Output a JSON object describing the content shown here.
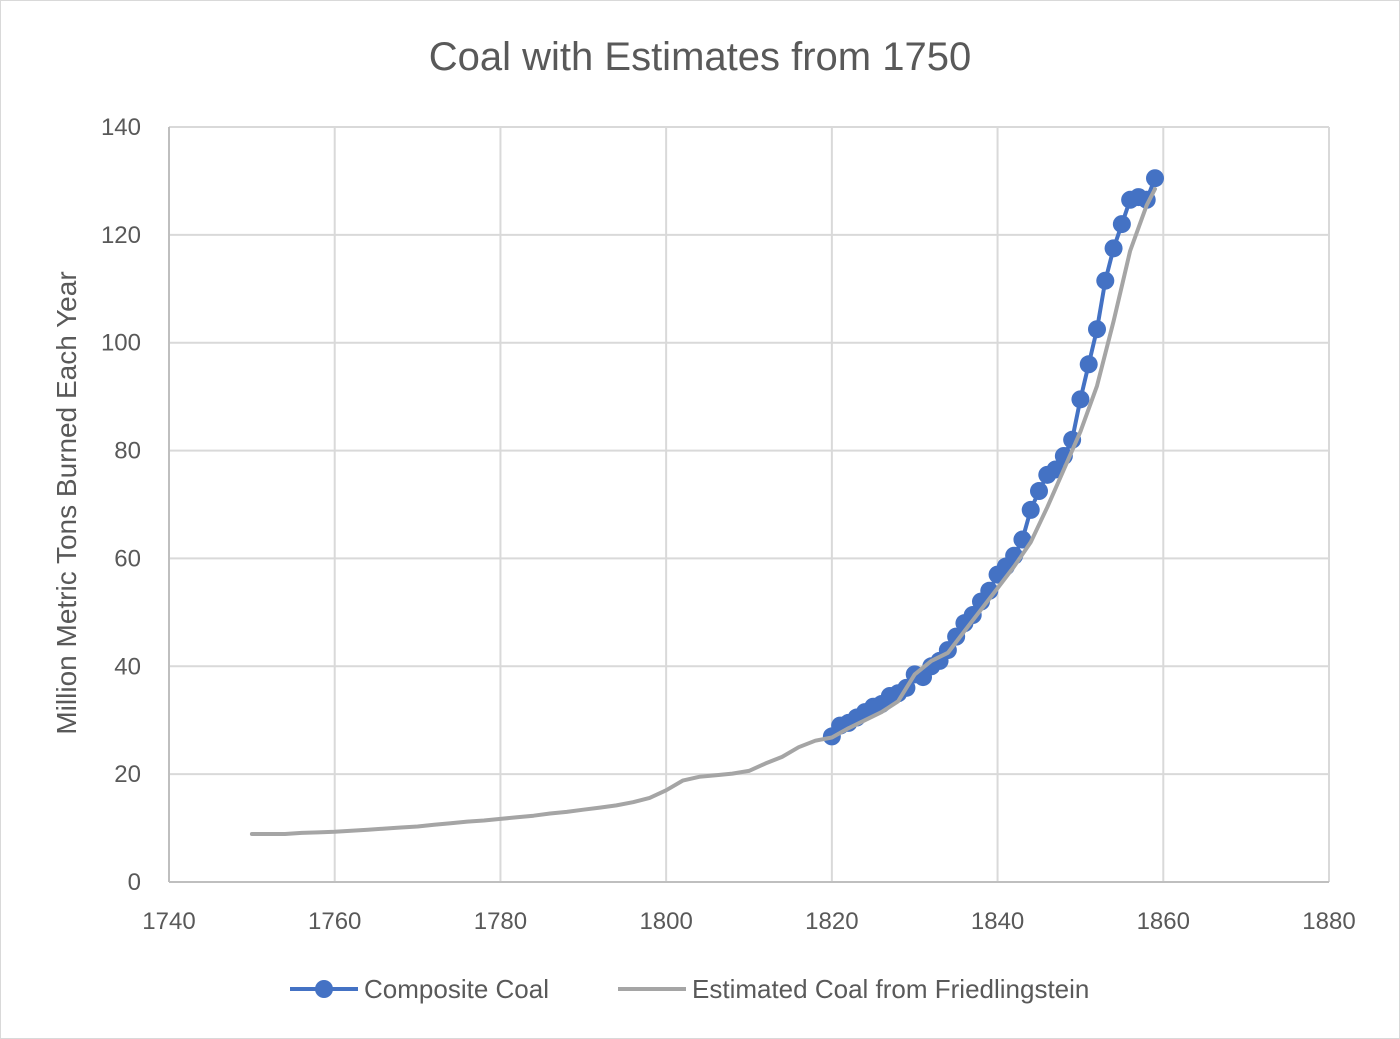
{
  "chart_data": {
    "type": "line",
    "title": "Coal with Estimates from 1750",
    "xlabel": "",
    "ylabel": "Million Metric Tons Burned Each Year",
    "xlim": [
      1740,
      1880
    ],
    "ylim": [
      0,
      140
    ],
    "x_ticks": [
      1740,
      1760,
      1780,
      1800,
      1820,
      1840,
      1860,
      1880
    ],
    "y_ticks": [
      0,
      20,
      40,
      60,
      80,
      100,
      120,
      140
    ],
    "grid": true,
    "legend_position": "bottom",
    "series": [
      {
        "name": "Composite Coal",
        "color": "#4472c4",
        "marker": "circle",
        "x": [
          1820,
          1821,
          1822,
          1823,
          1824,
          1825,
          1826,
          1827,
          1828,
          1829,
          1830,
          1831,
          1832,
          1833,
          1834,
          1835,
          1836,
          1837,
          1838,
          1839,
          1840,
          1841,
          1842,
          1843,
          1844,
          1845,
          1846,
          1847,
          1848,
          1849,
          1850,
          1851,
          1852,
          1853,
          1854,
          1855,
          1856,
          1857,
          1858,
          1859
        ],
        "y": [
          27.0,
          29.0,
          29.5,
          30.5,
          31.5,
          32.5,
          33.0,
          34.5,
          35.0,
          36.0,
          38.5,
          38.0,
          40.0,
          41.0,
          43.0,
          45.5,
          48.0,
          49.5,
          52.0,
          54.0,
          57.0,
          58.5,
          60.5,
          63.5,
          69.0,
          72.5,
          75.5,
          76.5,
          79.0,
          82.0,
          89.5,
          96.0,
          102.5,
          111.5,
          117.5,
          122.0,
          126.5,
          127.0,
          126.5,
          130.5
        ]
      },
      {
        "name": "Estimated Coal from Friedlingstein",
        "color": "#a5a5a5",
        "marker": "none",
        "x": [
          1750,
          1752,
          1754,
          1756,
          1758,
          1760,
          1762,
          1764,
          1766,
          1768,
          1770,
          1772,
          1774,
          1776,
          1778,
          1780,
          1782,
          1784,
          1786,
          1788,
          1790,
          1792,
          1794,
          1796,
          1798,
          1800,
          1802,
          1804,
          1806,
          1808,
          1810,
          1812,
          1814,
          1816,
          1818,
          1820,
          1822,
          1824,
          1826,
          1828,
          1830,
          1832,
          1834,
          1836,
          1838,
          1840,
          1842,
          1844,
          1846,
          1848,
          1850,
          1852,
          1854,
          1856,
          1858,
          1859
        ],
        "y": [
          8.9,
          8.9,
          8.9,
          9.1,
          9.2,
          9.3,
          9.5,
          9.7,
          9.9,
          10.1,
          10.3,
          10.6,
          10.9,
          11.2,
          11.4,
          11.7,
          12.0,
          12.3,
          12.7,
          13.0,
          13.4,
          13.8,
          14.2,
          14.8,
          15.6,
          17.0,
          18.8,
          19.5,
          19.8,
          20.1,
          20.6,
          22.0,
          23.2,
          25.0,
          26.2,
          26.8,
          28.5,
          30.0,
          31.5,
          33.5,
          38.5,
          41.0,
          42.5,
          46.5,
          50.5,
          54.5,
          58.5,
          63.0,
          69.5,
          76.5,
          83.5,
          92.0,
          104.0,
          117.0,
          125.5,
          128.5
        ]
      }
    ]
  }
}
